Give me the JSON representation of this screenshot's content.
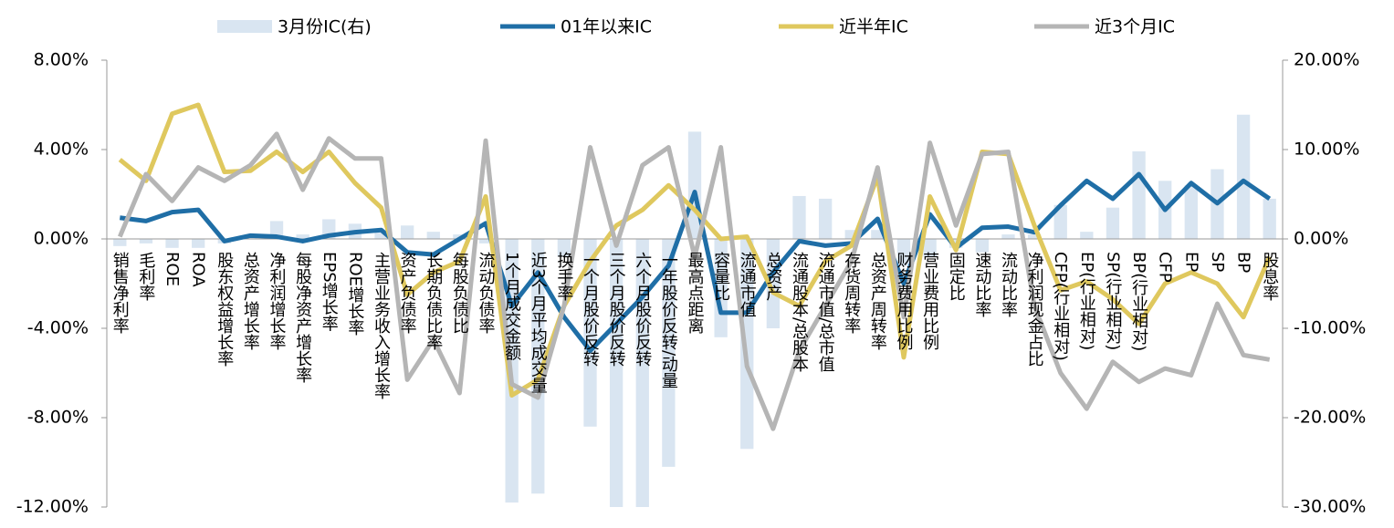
{
  "chart_data": {
    "type": "bar",
    "categories": [
      "销售净利率",
      "毛利率",
      "ROE",
      "ROA",
      "股东权益增长率",
      "总资产增长率",
      "净利润增长率",
      "每股净资产增长率",
      "EPS增长率",
      "ROE增长率",
      "主营业务收入增长率",
      "资产负债率",
      "长期负债比率",
      "每股负债比",
      "流动负债率",
      "1个月成交金额",
      "近3个月平均成交量",
      "换手率",
      "一个月股价反转",
      "三个月股价反转",
      "六个月股价反转",
      "一年股价反转/动量",
      "最高点距离",
      "容量比",
      "流通市值",
      "总资产",
      "流通股本/总股本",
      "流通市值/总市值",
      "存货周转率",
      "总资产周转率",
      "财务费用比例",
      "营业费用比例",
      "固定比",
      "速动比率",
      "流动比率",
      "净利润现金占比",
      "CFP(行业相对)",
      "EP(行业相对)",
      "SP(行业相对)",
      "BP(行业相对)",
      "CFP",
      "EP",
      "SP",
      "BP",
      "股息率"
    ],
    "series": [
      {
        "name": "3月份IC(右)",
        "type": "bar",
        "axis": "y2",
        "color": "#d9e5f1",
        "values": [
          -0.8,
          -0.5,
          -1,
          -1,
          -0.5,
          0.3,
          2.0,
          0.5,
          2.2,
          1.7,
          1.0,
          1.5,
          0.8,
          0.5,
          -0.5,
          -29.5,
          -28.5,
          -2,
          -21,
          -30,
          -30,
          -25.5,
          12,
          -11,
          -23.5,
          -10,
          4.8,
          4.5,
          1,
          1,
          -3,
          -2,
          -1,
          -1.5,
          0.5,
          0.5,
          3.8,
          0.8,
          3.5,
          9.8,
          6.5,
          6,
          7.8,
          13.9,
          4.5
        ]
      },
      {
        "name": "01年以来IC",
        "type": "line",
        "color": "#1f6ea6",
        "values": [
          0.95,
          0.8,
          1.2,
          1.3,
          -0.1,
          0.15,
          0.1,
          -0.1,
          0.15,
          0.3,
          0.4,
          -0.6,
          -0.7,
          0,
          0.7,
          -3.0,
          -1.5,
          -3.5,
          -5.0,
          -3.8,
          -2.6,
          -1.2,
          2.1,
          -3.3,
          -3.3,
          -1.5,
          -0.1,
          -0.3,
          -0.2,
          0.9,
          -2.0,
          1.1,
          -0.4,
          0.5,
          0.55,
          0.3,
          1.5,
          2.6,
          1.8,
          2.9,
          1.3,
          2.5,
          1.6,
          2.6,
          1.8
        ]
      },
      {
        "name": "近半年IC",
        "type": "line",
        "color": "#dfc85e",
        "values": [
          3.55,
          2.6,
          5.6,
          6.0,
          3.0,
          3.05,
          3.9,
          3.0,
          3.9,
          2.5,
          1.4,
          -2.5,
          -1.5,
          -1.0,
          1.9,
          -7.0,
          -6.3,
          -3.0,
          -1.0,
          0.6,
          1.3,
          2.4,
          1.3,
          0.0,
          0.1,
          -2.4,
          -3.0,
          -1.0,
          -0.3,
          2.8,
          -5.3,
          1.9,
          -0.5,
          3.9,
          3.8,
          0.6,
          -2.3,
          -1.9,
          -2.7,
          -3.8,
          -2.0,
          -1.5,
          -2.0,
          -3.5,
          -0.8
        ]
      },
      {
        "name": "近3个月IC",
        "type": "line",
        "color": "#b5b5b5",
        "values": [
          0.1,
          2.9,
          1.7,
          3.2,
          2.6,
          3.3,
          4.7,
          2.2,
          4.5,
          3.6,
          3.6,
          -6.3,
          -4.5,
          -6.9,
          4.4,
          -6.5,
          -7.1,
          -3.0,
          4.1,
          -0.3,
          3.3,
          4.1,
          -0.8,
          4.1,
          -5.7,
          -8.5,
          -5.0,
          -3.0,
          -1.0,
          3.2,
          -3.5,
          4.3,
          0.6,
          3.8,
          3.9,
          -3.0,
          -6.0,
          -7.6,
          -5.5,
          -6.4,
          -5.8,
          -6.1,
          -2.9,
          -5.2,
          -5.4
        ]
      }
    ],
    "ylim": [
      -12,
      8
    ],
    "yticks": [
      {
        "value": -12,
        "label": "-12.00%"
      },
      {
        "value": -8,
        "label": "-8.00%"
      },
      {
        "value": -4,
        "label": "-4.00%"
      },
      {
        "value": 0,
        "label": "0.00%"
      },
      {
        "value": 4,
        "label": "4.00%"
      },
      {
        "value": 8,
        "label": "8.00%"
      }
    ],
    "y2lim": [
      -30,
      20
    ],
    "y2ticks": [
      {
        "value": -30,
        "label": "-30.00%"
      },
      {
        "value": -20,
        "label": "-20.00%"
      },
      {
        "value": -10,
        "label": "-10.00%"
      },
      {
        "value": 0,
        "label": "0.00%"
      },
      {
        "value": 10,
        "label": "10.00%"
      },
      {
        "value": 20,
        "label": "20.00%"
      }
    ],
    "legend": "top"
  }
}
